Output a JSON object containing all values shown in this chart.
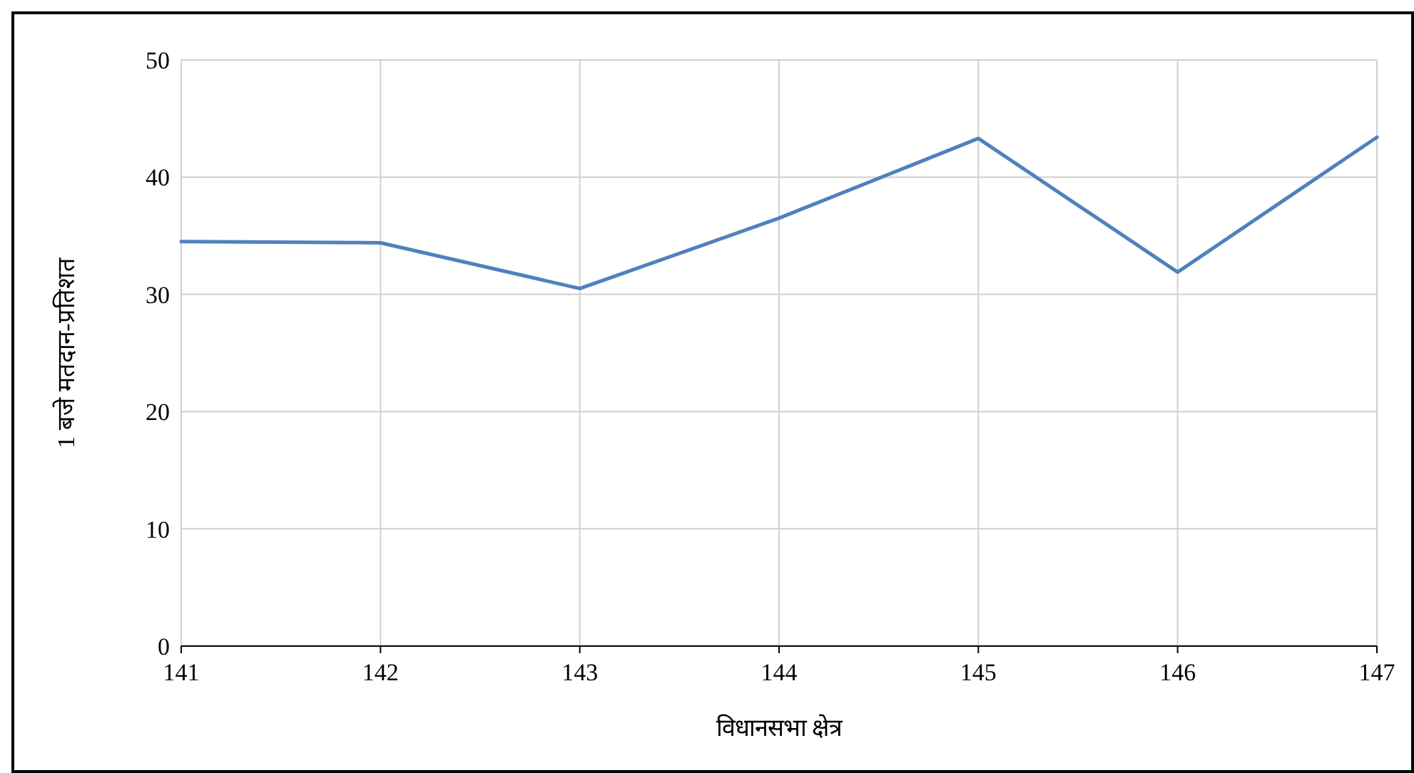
{
  "chart_data": {
    "type": "line",
    "xlabel": "विधानसभा क्षेत्र",
    "ylabel": "1 बजे मतदान-प्रतिशत",
    "x": [
      141,
      142,
      143,
      144,
      145,
      146,
      147
    ],
    "series": [
      {
        "color": "#4f81bd",
        "values": [
          34.5,
          34.4,
          30.5,
          36.5,
          43.3,
          31.9,
          43.4
        ]
      }
    ],
    "xlim": [
      141,
      147
    ],
    "xticks": [
      141,
      142,
      143,
      144,
      145,
      146,
      147
    ],
    "ylim": [
      0,
      50
    ],
    "yticks": [
      0,
      10,
      20,
      30,
      40,
      50
    ],
    "grid": true,
    "marker": "none",
    "line_style": "solid"
  }
}
